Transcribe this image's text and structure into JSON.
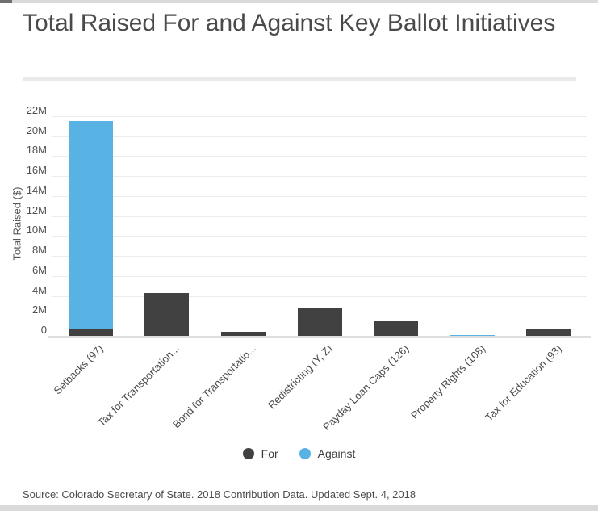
{
  "title": {
    "text": "Total Raised For and Against Key Ballot Initiatives"
  },
  "source": {
    "text": "Source: Colorado Secretary of State. 2018 Contribution Data. Updated Sept. 4, 2018"
  },
  "chart_data": {
    "type": "bar",
    "stacked": true,
    "title": "Total Raised For and Against Key Ballot Initiatives",
    "ylabel": "Total Raised ($)",
    "xlabel": "",
    "unit": "millions USD",
    "categories": [
      "Setbacks (97)",
      "Tax for Transportation...",
      "Bond for Transportatio...",
      "Redistricting (Y, Z)",
      "Payday Loan Caps (126)",
      "Property Rights (108)",
      "Tax for Education (93)"
    ],
    "series": [
      {
        "name": "For",
        "color": "#414141",
        "values": [
          0.8,
          4.4,
          0.5,
          2.8,
          1.5,
          0,
          0.7
        ]
      },
      {
        "name": "Against",
        "color": "#58b3e4",
        "values": [
          20.8,
          0,
          0,
          0,
          0,
          0.2,
          0
        ]
      }
    ],
    "yticks": [
      "0",
      "2M",
      "4M",
      "6M",
      "8M",
      "10M",
      "12M",
      "14M",
      "16M",
      "18M",
      "20M",
      "22M"
    ],
    "ylim": [
      0,
      22
    ],
    "grid": true,
    "legend_position": "bottom"
  }
}
